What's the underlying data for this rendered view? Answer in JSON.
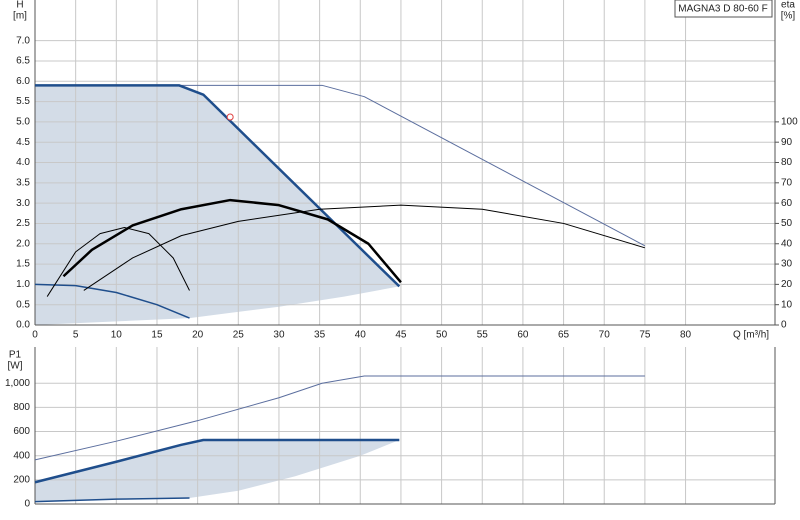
{
  "chart_data": [
    {
      "type": "line",
      "title": "MAGNA3 D 80-60 F",
      "ylabel": [
        "H",
        "[m]"
      ],
      "y2label": [
        "eta",
        "[%]"
      ],
      "xlabel": "Q [m³/h]",
      "xlim": [
        0,
        91
      ],
      "xticks": [
        0,
        5,
        10,
        15,
        20,
        25,
        30,
        35,
        40,
        45,
        50,
        55,
        60,
        65,
        70,
        75,
        80
      ],
      "show_xtick_labels": true,
      "ylim": [
        0,
        8
      ],
      "yticks": [
        {
          "value": 0,
          "label": "0.0"
        },
        0.5,
        {
          "value": 1,
          "label": "1.0"
        },
        1.5,
        {
          "value": 2,
          "label": "2.0"
        },
        2.5,
        {
          "value": 3,
          "label": "3.0"
        },
        3.5,
        {
          "value": 4,
          "label": "4.0"
        },
        4.5,
        {
          "value": 5,
          "label": "5.0"
        },
        5.5,
        {
          "value": 6,
          "label": "6.0"
        },
        6.5,
        {
          "value": 7,
          "label": "7.0"
        }
      ],
      "y2lim": [
        0,
        160
      ],
      "y2ticks": [
        0,
        10,
        20,
        30,
        40,
        50,
        60,
        70,
        80,
        90,
        100
      ],
      "grid": true,
      "areas": [
        {
          "color": "#d3dce7",
          "x": [
            0,
            0,
            17.7,
            20.7,
            44.8,
            38,
            30,
            24,
            19,
            0
          ],
          "values": [
            0,
            5.9,
            5.9,
            5.67,
            0.95,
            0.7,
            0.45,
            0.3,
            0.17,
            0
          ]
        }
      ],
      "series": [
        {
          "color": "#5b6e9e",
          "line_width": 1,
          "x": [
            17.7,
            35.3,
            40.5,
            75
          ],
          "values": [
            5.9,
            5.9,
            5.62,
            1.95
          ]
        },
        {
          "color": "#1f4e8c",
          "line_width": 2.5,
          "x": [
            0,
            17.7,
            20.7,
            44.8
          ],
          "values": [
            5.9,
            5.9,
            5.67,
            0.95
          ]
        },
        {
          "color": "#1f4e8c",
          "line_width": 1.5,
          "x": [
            0,
            5,
            10,
            15,
            19
          ],
          "values": [
            1.0,
            0.97,
            0.8,
            0.5,
            0.17
          ]
        },
        {
          "color": "#000000",
          "line_width": 1,
          "axis": "y2",
          "x": [
            6,
            12,
            18,
            25,
            35,
            45,
            55,
            65,
            75
          ],
          "values": [
            17,
            33,
            44,
            51,
            57,
            59,
            57,
            50,
            38
          ]
        },
        {
          "color": "#000000",
          "line_width": 1,
          "axis": "y2",
          "x": [
            1.5,
            5,
            8,
            11,
            14,
            17,
            19
          ],
          "values": [
            14,
            36,
            45,
            48,
            45,
            33,
            17
          ]
        },
        {
          "color": "#000000",
          "line_width": 2.5,
          "axis": "y2",
          "x": [
            3.5,
            7,
            12,
            18,
            24,
            30,
            36,
            41,
            45
          ],
          "values": [
            24,
            37,
            49,
            57,
            61.5,
            59,
            52,
            40,
            21
          ]
        }
      ],
      "markers": [
        {
          "x": 24,
          "y": 5.12,
          "color": "#e04040"
        }
      ]
    },
    {
      "type": "line",
      "ylabel": [
        "P1",
        "[W]"
      ],
      "xlim": [
        0,
        91
      ],
      "xticks": [
        0,
        5,
        10,
        15,
        20,
        25,
        30,
        35,
        40,
        45,
        50,
        55,
        60,
        65,
        70,
        75,
        80
      ],
      "show_xtick_labels": false,
      "ylim": [
        0,
        1300
      ],
      "yticks": [
        0,
        200,
        400,
        600,
        800,
        {
          "value": 1000,
          "label": "1,000"
        }
      ],
      "grid": true,
      "areas": [
        {
          "color": "#d3dce7",
          "x": [
            0,
            10,
            18,
            20.7,
            44.8,
            40,
            32,
            25,
            19,
            10,
            0
          ],
          "values": [
            180,
            350,
            490,
            530,
            530,
            400,
            230,
            110,
            50,
            40,
            20
          ]
        }
      ],
      "series": [
        {
          "color": "#5b6e9e",
          "line_width": 1,
          "x": [
            0,
            10,
            20,
            30,
            35.3,
            40.5,
            75
          ],
          "values": [
            365,
            520,
            690,
            880,
            1000,
            1060,
            1060
          ]
        },
        {
          "color": "#1f4e8c",
          "line_width": 2.5,
          "x": [
            0,
            10,
            18,
            20.7,
            44.8
          ],
          "values": [
            180,
            350,
            490,
            530,
            530
          ]
        },
        {
          "color": "#1f4e8c",
          "line_width": 1.5,
          "x": [
            0,
            10,
            19
          ],
          "values": [
            20,
            40,
            50
          ]
        }
      ]
    }
  ]
}
